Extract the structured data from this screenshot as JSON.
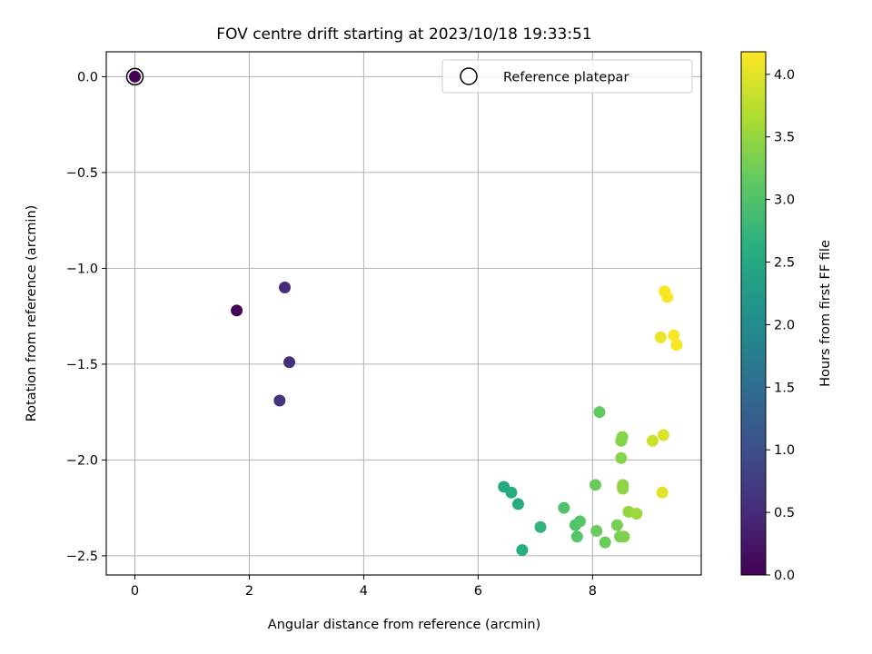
{
  "chart_data": {
    "type": "scatter",
    "title": "FOV centre drift starting at 2023/10/18 19:33:51",
    "xlabel": "Angular distance from reference (arcmin)",
    "ylabel": "Rotation from reference (arcmin)",
    "xlim": [
      -0.5,
      9.9
    ],
    "ylim": [
      -2.6,
      0.13
    ],
    "xticks": [
      0,
      2,
      4,
      6,
      8
    ],
    "yticks": [
      0.0,
      -0.5,
      -1.0,
      -1.5,
      -2.0,
      -2.5
    ],
    "grid": true,
    "legend": {
      "position": "top-right",
      "entries": [
        "Reference platepar"
      ]
    },
    "reference_point": {
      "x": 0,
      "y": 0,
      "hours": 0.0,
      "label": "Reference platepar"
    },
    "colorbar": {
      "label": "Hours from first FF file",
      "colormap": "viridis",
      "range": [
        0.0,
        4.18
      ],
      "ticks": [
        0.0,
        0.5,
        1.0,
        1.5,
        2.0,
        2.5,
        3.0,
        3.5,
        4.0
      ]
    },
    "points": [
      {
        "x": 0.0,
        "y": 0.0,
        "hours": 0.0
      },
      {
        "x": 1.78,
        "y": -1.22,
        "hours": 0.05
      },
      {
        "x": 2.62,
        "y": -1.1,
        "hours": 0.5
      },
      {
        "x": 2.7,
        "y": -1.49,
        "hours": 0.55
      },
      {
        "x": 2.53,
        "y": -1.69,
        "hours": 0.6
      },
      {
        "x": 6.45,
        "y": -2.14,
        "hours": 2.5
      },
      {
        "x": 6.58,
        "y": -2.17,
        "hours": 2.55
      },
      {
        "x": 6.7,
        "y": -2.23,
        "hours": 2.55
      },
      {
        "x": 6.77,
        "y": -2.47,
        "hours": 2.6
      },
      {
        "x": 7.09,
        "y": -2.35,
        "hours": 2.7
      },
      {
        "x": 7.5,
        "y": -2.25,
        "hours": 3.0
      },
      {
        "x": 7.7,
        "y": -2.34,
        "hours": 3.0
      },
      {
        "x": 7.78,
        "y": -2.32,
        "hours": 3.05
      },
      {
        "x": 7.73,
        "y": -2.4,
        "hours": 3.05
      },
      {
        "x": 8.05,
        "y": -2.13,
        "hours": 3.2
      },
      {
        "x": 8.12,
        "y": -1.75,
        "hours": 3.15
      },
      {
        "x": 8.07,
        "y": -2.37,
        "hours": 3.2
      },
      {
        "x": 8.22,
        "y": -2.43,
        "hours": 3.2
      },
      {
        "x": 8.43,
        "y": -2.34,
        "hours": 3.3
      },
      {
        "x": 8.48,
        "y": -2.4,
        "hours": 3.3
      },
      {
        "x": 8.55,
        "y": -2.4,
        "hours": 3.35
      },
      {
        "x": 8.52,
        "y": -1.88,
        "hours": 3.4
      },
      {
        "x": 8.5,
        "y": -1.9,
        "hours": 3.4
      },
      {
        "x": 8.5,
        "y": -1.99,
        "hours": 3.4
      },
      {
        "x": 8.53,
        "y": -2.13,
        "hours": 3.45
      },
      {
        "x": 8.53,
        "y": -2.15,
        "hours": 3.45
      },
      {
        "x": 8.63,
        "y": -2.27,
        "hours": 3.5
      },
      {
        "x": 8.77,
        "y": -2.28,
        "hours": 3.55
      },
      {
        "x": 9.05,
        "y": -1.9,
        "hours": 3.85
      },
      {
        "x": 9.24,
        "y": -1.87,
        "hours": 3.95
      },
      {
        "x": 9.22,
        "y": -2.17,
        "hours": 4.0
      },
      {
        "x": 9.19,
        "y": -1.36,
        "hours": 4.05
      },
      {
        "x": 9.42,
        "y": -1.35,
        "hours": 4.15
      },
      {
        "x": 9.47,
        "y": -1.4,
        "hours": 4.15
      },
      {
        "x": 9.26,
        "y": -1.12,
        "hours": 4.15
      },
      {
        "x": 9.31,
        "y": -1.15,
        "hours": 4.15
      }
    ]
  }
}
